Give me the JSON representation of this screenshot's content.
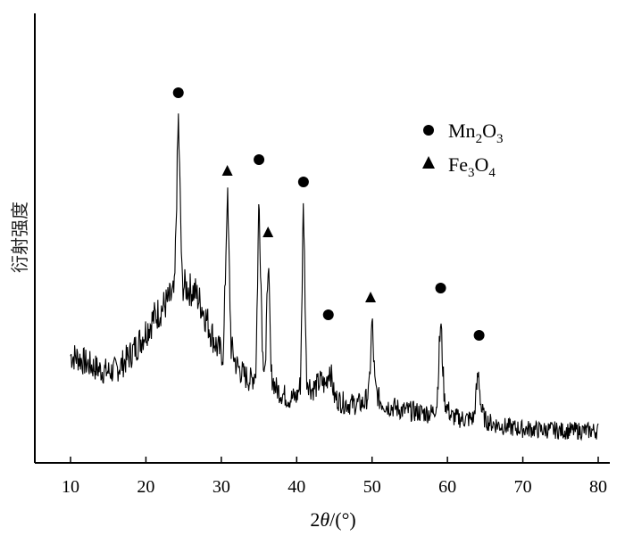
{
  "chart_data": {
    "type": "line",
    "xlabel_prefix": "2",
    "xlabel_var": "θ",
    "xlabel_suffix": "/(°)",
    "ylabel": "衍射强度",
    "xlim": [
      10,
      80
    ],
    "xticks": [
      10,
      20,
      30,
      40,
      50,
      60,
      70,
      80
    ],
    "y_ticks_shown": false,
    "grid": false,
    "legend_position": "top-right",
    "legend": [
      {
        "marker": "circle",
        "base": "Mn",
        "sub1": "2",
        "mid": "O",
        "sub2": "3"
      },
      {
        "marker": "triangle",
        "base": "Fe",
        "sub1": "3",
        "mid": "O",
        "sub2": "4"
      }
    ],
    "series": [
      {
        "x": [
          10,
          11,
          12,
          13,
          14,
          15,
          16,
          17,
          18,
          19,
          20,
          21,
          22,
          23,
          23.8,
          24.3,
          24.8,
          25.5,
          26.5,
          27.5,
          28.5,
          29.5,
          30.3,
          30.8,
          31.3,
          32,
          33,
          34,
          34.6,
          35,
          35.5,
          35.9,
          36.2,
          36.6,
          37.2,
          38,
          39,
          40,
          40.5,
          40.9,
          41.3,
          42,
          42.6,
          43.2,
          43.8,
          44.4,
          45,
          46,
          47,
          48,
          49,
          49.6,
          50,
          50.4,
          51,
          52,
          53,
          54,
          55,
          56,
          57,
          58,
          58.6,
          59.1,
          59.6,
          60.5,
          61.5,
          62.5,
          63.5,
          64.1,
          64.5,
          65,
          66,
          67,
          68,
          69,
          70,
          71,
          72,
          73,
          74,
          75,
          76,
          77,
          78,
          79,
          80
        ],
        "y": [
          120,
          118,
          112,
          108,
          104,
          102,
          104,
          112,
          122,
          134,
          148,
          162,
          172,
          182,
          190,
          390,
          200,
          196,
          192,
          174,
          150,
          128,
          122,
          308,
          130,
          110,
          98,
          92,
          104,
          300,
          120,
          110,
          235,
          100,
          84,
          78,
          72,
          74,
          88,
          295,
          96,
          82,
          86,
          92,
          86,
          108,
          74,
          68,
          66,
          66,
          67,
          80,
          160,
          84,
          70,
          64,
          62,
          59,
          58,
          57,
          56,
          56,
          66,
          160,
          70,
          52,
          50,
          49,
          50,
          102,
          60,
          48,
          44,
          42,
          40,
          39,
          38,
          38,
          37,
          37,
          37,
          36,
          36,
          36,
          36,
          36,
          36
        ]
      }
    ],
    "peak_markers": [
      {
        "x": 24.3,
        "y": 415,
        "marker": "circle"
      },
      {
        "x": 30.8,
        "y": 327,
        "marker": "triangle"
      },
      {
        "x": 35.0,
        "y": 340,
        "marker": "circle"
      },
      {
        "x": 36.2,
        "y": 258,
        "marker": "triangle"
      },
      {
        "x": 40.9,
        "y": 315,
        "marker": "circle"
      },
      {
        "x": 44.2,
        "y": 166,
        "marker": "circle"
      },
      {
        "x": 49.8,
        "y": 185,
        "marker": "triangle"
      },
      {
        "x": 59.1,
        "y": 196,
        "marker": "circle"
      },
      {
        "x": 64.2,
        "y": 143,
        "marker": "circle"
      }
    ],
    "noise_amplitude": 28,
    "colors": {
      "line": "#000000",
      "axis": "#000000"
    }
  }
}
